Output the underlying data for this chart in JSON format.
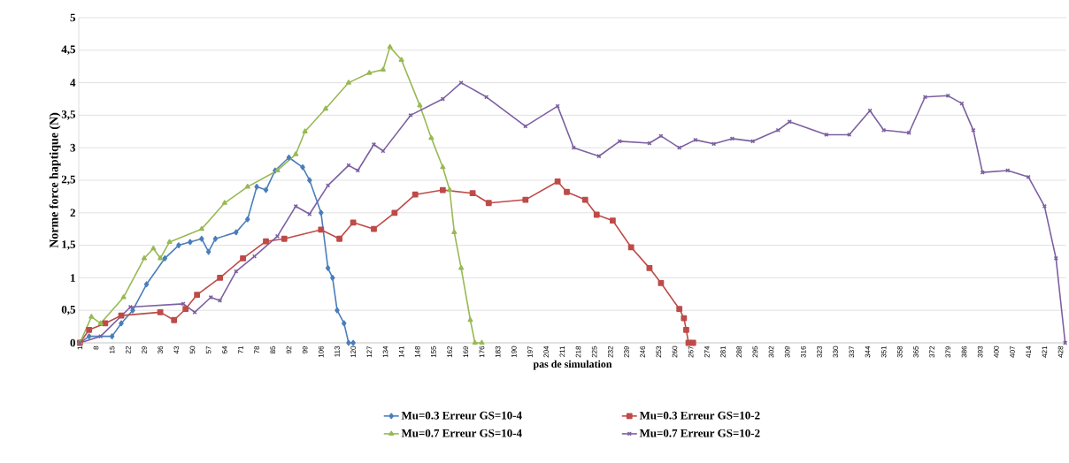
{
  "chart_data": {
    "type": "line",
    "xlabel": "pas de simulation",
    "ylabel": "Norme force haptique (N)",
    "xlim": [
      0.5,
      430.5
    ],
    "ylim": [
      0,
      5
    ],
    "xticks": [
      1,
      8,
      15,
      22,
      29,
      36,
      43,
      50,
      57,
      64,
      71,
      78,
      85,
      92,
      99,
      106,
      113,
      120,
      127,
      134,
      141,
      148,
      155,
      162,
      169,
      176,
      183,
      190,
      197,
      204,
      211,
      218,
      225,
      232,
      239,
      246,
      253,
      260,
      267,
      274,
      281,
      288,
      295,
      302,
      309,
      316,
      323,
      330,
      337,
      344,
      351,
      358,
      365,
      372,
      379,
      386,
      393,
      400,
      407,
      414,
      421,
      428
    ],
    "yticks": [
      0,
      {
        "value": 0.5,
        "label": "0,5"
      },
      1,
      {
        "value": 1.5,
        "label": "1,5"
      },
      2,
      {
        "value": 2.5,
        "label": "2,5"
      },
      3,
      {
        "value": 3.5,
        "label": "3,5"
      },
      4,
      {
        "value": 4.5,
        "label": "4,5"
      },
      5
    ],
    "grid": "y",
    "legend": "bottom",
    "line_style": "solid",
    "series": [
      {
        "name": "Mu=0.3 Erreur GS=10-4",
        "color": "#4a7ebb",
        "marker": "diamond",
        "x": [
          1,
          5,
          15,
          19,
          24,
          30,
          38,
          44,
          49,
          54,
          57,
          60,
          69,
          74,
          78,
          82,
          86,
          92,
          98,
          101,
          106,
          109,
          111,
          113,
          116,
          118,
          120
        ],
        "values": [
          0,
          0.1,
          0.1,
          0.3,
          0.5,
          0.9,
          1.3,
          1.5,
          1.55,
          1.6,
          1.4,
          1.6,
          1.7,
          1.9,
          2.4,
          2.35,
          2.65,
          2.85,
          2.7,
          2.5,
          2.0,
          1.15,
          1.0,
          0.5,
          0.3,
          0,
          0
        ]
      },
      {
        "name": "Mu=0.3 Erreur GS=10-2",
        "color": "#be4b48",
        "marker": "square",
        "x": [
          1,
          5,
          12,
          19,
          36,
          42,
          47,
          52,
          62,
          72,
          82,
          90,
          106,
          114,
          120,
          129,
          138,
          147,
          159,
          172,
          179,
          195,
          209,
          213,
          221,
          226,
          233,
          241,
          249,
          254,
          262,
          264,
          265,
          266,
          268
        ],
        "values": [
          0,
          0.2,
          0.3,
          0.42,
          0.47,
          0.35,
          0.52,
          0.74,
          1.0,
          1.3,
          1.56,
          1.6,
          1.74,
          1.6,
          1.85,
          1.75,
          2.0,
          2.28,
          2.35,
          2.3,
          2.15,
          2.2,
          2.48,
          2.32,
          2.2,
          1.97,
          1.88,
          1.47,
          1.15,
          0.92,
          0.52,
          0.38,
          0.2,
          0,
          0
        ]
      },
      {
        "name": "Mu=0.7 Erreur GS=10-4",
        "color": "#98b954",
        "marker": "triangle",
        "x": [
          1,
          6,
          10,
          20,
          29,
          33,
          36,
          40,
          54,
          64,
          74,
          87,
          95,
          99,
          108,
          118,
          127,
          133,
          136,
          141,
          149,
          154,
          159,
          162,
          164,
          167,
          171,
          173,
          176
        ],
        "values": [
          0,
          0.4,
          0.3,
          0.7,
          1.3,
          1.45,
          1.3,
          1.55,
          1.75,
          2.15,
          2.4,
          2.65,
          2.9,
          3.25,
          3.6,
          4.0,
          4.15,
          4.2,
          4.55,
          4.35,
          3.65,
          3.15,
          2.7,
          2.35,
          1.7,
          1.15,
          0.35,
          0,
          0
        ]
      },
      {
        "name": "Mu=0.7 Erreur GS=10-2",
        "color": "#7d60a0",
        "marker": "cross",
        "x": [
          1,
          10,
          23,
          46,
          51,
          58,
          62,
          69,
          77,
          87,
          95,
          101,
          109,
          118,
          122,
          129,
          133,
          145,
          159,
          167,
          178,
          195,
          209,
          216,
          227,
          236,
          249,
          254,
          262,
          269,
          277,
          285,
          294,
          305,
          310,
          326,
          336,
          345,
          351,
          362,
          369,
          379,
          385,
          390,
          394,
          405,
          414,
          421,
          426,
          430
        ],
        "values": [
          0,
          0.1,
          0.55,
          0.6,
          0.47,
          0.7,
          0.65,
          1.1,
          1.33,
          1.64,
          2.1,
          1.98,
          2.42,
          2.73,
          2.65,
          3.05,
          2.95,
          3.5,
          3.75,
          4.0,
          3.78,
          3.33,
          3.64,
          3.0,
          2.87,
          3.1,
          3.07,
          3.18,
          3.0,
          3.12,
          3.06,
          3.14,
          3.1,
          3.27,
          3.4,
          3.2,
          3.2,
          3.57,
          3.27,
          3.23,
          3.78,
          3.8,
          3.68,
          3.27,
          2.62,
          2.65,
          2.55,
          2.1,
          1.3,
          0
        ]
      }
    ]
  }
}
